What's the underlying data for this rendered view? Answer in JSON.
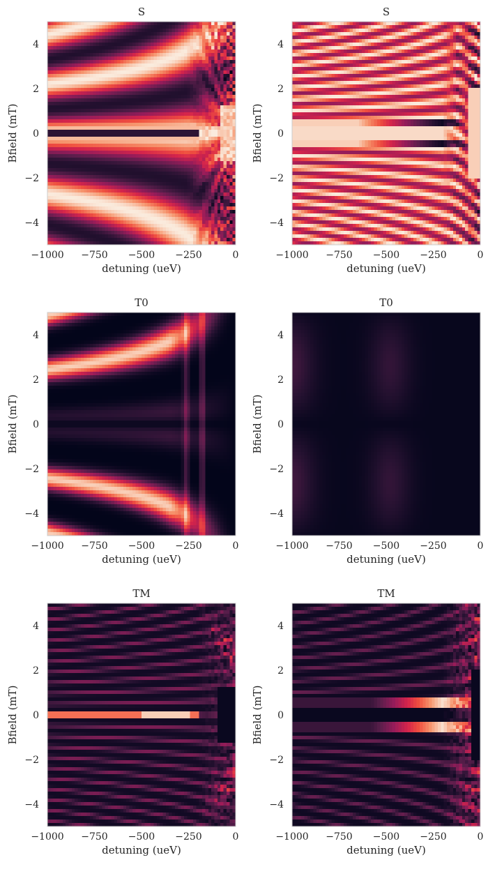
{
  "chart_data": [
    {
      "type": "heatmap",
      "title": "S",
      "xlabel": "detuning (ueV)",
      "ylabel": "Bfield (mT)",
      "xlim": [
        -1000,
        0
      ],
      "ylim": [
        -5,
        5
      ],
      "xticks": [
        -1000,
        -750,
        -500,
        -250,
        0
      ],
      "yticks": [
        -4,
        -2,
        0,
        2,
        4
      ],
      "xtick_labels": [
        "−1000",
        "−750",
        "−500",
        "−250",
        "0"
      ],
      "ytick_labels": [
        "−4",
        "−2",
        "0",
        "2",
        "4"
      ],
      "grid": false,
      "colormap": "rocket",
      "pattern": "S1"
    },
    {
      "type": "heatmap",
      "title": "S",
      "xlabel": "detuning (ueV)",
      "ylabel": "Bfield (mT)",
      "xlim": [
        -1000,
        0
      ],
      "ylim": [
        -5,
        5
      ],
      "xticks": [
        -1000,
        -750,
        -500,
        -250,
        0
      ],
      "yticks": [
        -4,
        -2,
        0,
        2,
        4
      ],
      "xtick_labels": [
        "−1000",
        "−750",
        "−500",
        "−250",
        "0"
      ],
      "ytick_labels": [
        "−4",
        "−2",
        "0",
        "2",
        "4"
      ],
      "grid": false,
      "colormap": "rocket",
      "pattern": "S2"
    },
    {
      "type": "heatmap",
      "title": "T0",
      "xlabel": "detuning (ueV)",
      "ylabel": "Bfield (mT)",
      "xlim": [
        -1000,
        0
      ],
      "ylim": [
        -5,
        5
      ],
      "xticks": [
        -1000,
        -750,
        -500,
        -250,
        0
      ],
      "yticks": [
        -4,
        -2,
        0,
        2,
        4
      ],
      "xtick_labels": [
        "−1000",
        "−750",
        "−500",
        "−250",
        "0"
      ],
      "ytick_labels": [
        "−4",
        "−2",
        "0",
        "2",
        "4"
      ],
      "grid": false,
      "colormap": "rocket",
      "pattern": "T01"
    },
    {
      "type": "heatmap",
      "title": "T0",
      "xlabel": "detuning (ueV)",
      "ylabel": "Bfield (mT)",
      "xlim": [
        -1000,
        0
      ],
      "ylim": [
        -5,
        5
      ],
      "xticks": [
        -1000,
        -750,
        -500,
        -250,
        0
      ],
      "yticks": [
        -4,
        -2,
        0,
        2,
        4
      ],
      "xtick_labels": [
        "−1000",
        "−750",
        "−500",
        "−250",
        "0"
      ],
      "ytick_labels": [
        "−4",
        "−2",
        "0",
        "2",
        "4"
      ],
      "grid": false,
      "colormap": "rocket",
      "pattern": "T02"
    },
    {
      "type": "heatmap",
      "title": "TM",
      "xlabel": "detuning (ueV)",
      "ylabel": "Bfield (mT)",
      "xlim": [
        -1000,
        0
      ],
      "ylim": [
        -5,
        5
      ],
      "xticks": [
        -1000,
        -750,
        -500,
        -250,
        0
      ],
      "yticks": [
        -4,
        -2,
        0,
        2,
        4
      ],
      "xtick_labels": [
        "−1000",
        "−750",
        "−500",
        "−250",
        "0"
      ],
      "ytick_labels": [
        "−4",
        "−2",
        "0",
        "2",
        "4"
      ],
      "grid": false,
      "colormap": "rocket",
      "pattern": "TM1"
    },
    {
      "type": "heatmap",
      "title": "TM",
      "xlabel": "detuning (ueV)",
      "ylabel": "Bfield (mT)",
      "xlim": [
        -1000,
        0
      ],
      "ylim": [
        -5,
        5
      ],
      "xticks": [
        -1000,
        -750,
        -500,
        -250,
        0
      ],
      "yticks": [
        -4,
        -2,
        0,
        2,
        4
      ],
      "xtick_labels": [
        "−1000",
        "−750",
        "−500",
        "−250",
        "0"
      ],
      "ytick_labels": [
        "−4",
        "−2",
        "0",
        "2",
        "4"
      ],
      "grid": false,
      "colormap": "rocket",
      "pattern": "TM2"
    }
  ]
}
